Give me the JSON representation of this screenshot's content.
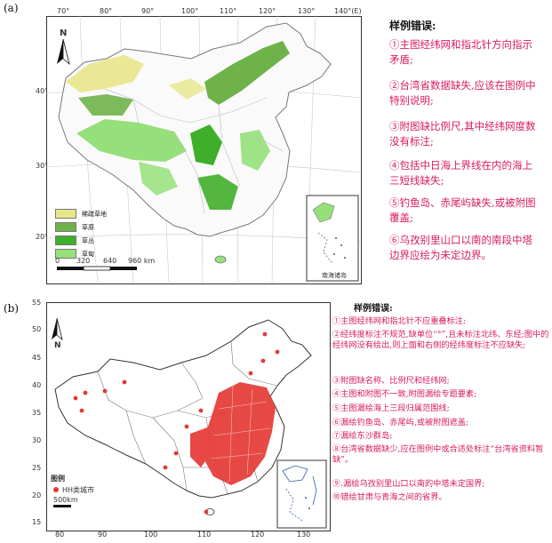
{
  "panel_a": {
    "label": "(a)",
    "lon_ticks": [
      "70°",
      "80°",
      "90°",
      "100°",
      "110°",
      "120°",
      "130°",
      "140°(E)"
    ],
    "lat_ticks": [
      "40°",
      "30°",
      "20°"
    ],
    "north": "N",
    "legend": [
      {
        "label": "稀疏草地",
        "color": "#e8e68a"
      },
      {
        "label": "草原",
        "color": "#6fb24a"
      },
      {
        "label": "草丛",
        "color": "#3fae2a"
      },
      {
        "label": "草甸",
        "color": "#95e07a"
      }
    ],
    "scale": {
      "ticks": [
        "0",
        "320",
        "640",
        "960 km"
      ]
    },
    "inset_label": "南海诸岛",
    "heading": "样例错误:",
    "notes": [
      "①主图经纬网和指北针方向指示矛盾;",
      "②台湾省数据缺失,应该在图例中特别说明;",
      "③附图缺比例尺,其中经纬网度数没有标注;",
      "④包括中日海上界线在内的海上三短线缺失;",
      "⑤钓鱼岛、赤尾屿缺失,或被附图覆盖;",
      "⑥乌孜别里山口以南的南段中塔边界应绘为未定边界。"
    ]
  },
  "panel_b": {
    "label": "(b)",
    "lat_ticks": [
      "55",
      "50",
      "45",
      "40",
      "35",
      "30",
      "25",
      "20",
      "15"
    ],
    "lon_ticks": [
      "80",
      "90",
      "100",
      "110",
      "120",
      "130"
    ],
    "north": "N",
    "legend_title": "图例",
    "legend_item": "HH类城市",
    "point_color": "#e53935",
    "scale": "500km",
    "heading": "样例错误:",
    "notes": [
      "①主图经纬网和指北针不应重叠标注;",
      "②经纬度标注不规范,缺单位“°”,且未标注北纬、东经;图中的经纬网没有绘出,则上面和右侧的经纬度标注不应缺失;",
      "③附图缺名称、比例尺和经纬网;",
      "④主图和附图不一致,附图漏绘专题要素;",
      "⑤主图漏绘海上三段归属范围线;",
      "⑥漏绘钓鱼岛、赤尾屿,或被附图遮盖;",
      "⑦漏绘东沙群岛;",
      "⑧台湾省数据缺少,应在图例中或合适处标注“台湾省资料暂缺”。",
      "⑨.漏绘乌孜别里山口以南的中塔未定国界;",
      "⑩错绘甘肃与青海之间的省界。"
    ]
  }
}
